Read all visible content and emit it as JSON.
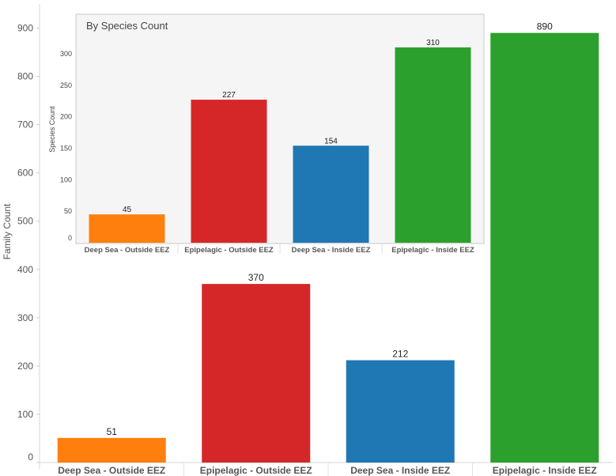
{
  "chart_data": [
    {
      "type": "bar",
      "role": "main",
      "title": "",
      "xlabel": "",
      "ylabel": "Family Count",
      "categories": [
        "Deep Sea - Outside EEZ",
        "Epipelagic - Outside EEZ",
        "Deep Sea - Inside EEZ",
        "Epipelagic - Inside EEZ"
      ],
      "values": [
        51,
        370,
        212,
        890
      ],
      "data_labels": [
        "51",
        "370",
        "212",
        "890"
      ],
      "colors": [
        "#ff7f0e",
        "#d62728",
        "#1f77b4",
        "#2ca02c"
      ],
      "ylim": [
        0,
        950
      ],
      "yticks": [
        0,
        100,
        200,
        300,
        400,
        500,
        600,
        700,
        800,
        900
      ],
      "grid": false,
      "legend": "none"
    },
    {
      "type": "bar",
      "role": "inset",
      "title": "By Species Count",
      "xlabel": "",
      "ylabel": "Species Count",
      "categories": [
        "Deep Sea - Outside EEZ",
        "Epipelagic - Outside EEZ",
        "Deep Sea - Inside EEZ",
        "Epipelagic - Inside EEZ"
      ],
      "values": [
        45,
        227,
        154,
        310
      ],
      "data_labels": [
        "45",
        "227",
        "154",
        "310"
      ],
      "colors": [
        "#ff7f0e",
        "#d62728",
        "#1f77b4",
        "#2ca02c"
      ],
      "ylim": [
        0,
        330
      ],
      "yticks": [
        0,
        50,
        100,
        150,
        200,
        250,
        300
      ],
      "grid": false,
      "legend": "none"
    }
  ]
}
